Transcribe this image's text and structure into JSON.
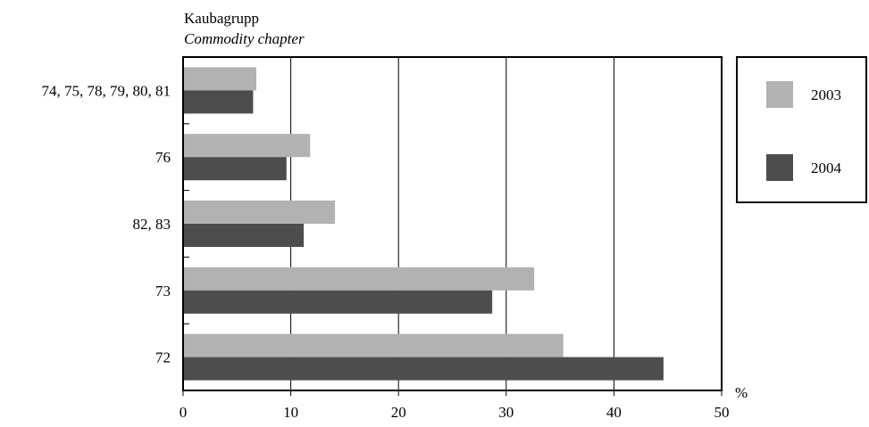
{
  "chart_data": {
    "type": "bar",
    "orientation": "horizontal",
    "ylabel": "Kaubagrupp",
    "ylabel_sub": "Commodity chapter",
    "xlabel": "%",
    "xlim": [
      0,
      50
    ],
    "xticks": [
      "0",
      "10",
      "20",
      "30",
      "40",
      "50"
    ],
    "categories": [
      "74, 75, 78, 79, 80, 81",
      "76",
      "82, 83",
      "73",
      "72"
    ],
    "series": [
      {
        "name": "2003",
        "color": "#b2b2b2",
        "values": [
          6.8,
          11.8,
          14.1,
          32.6,
          35.3
        ]
      },
      {
        "name": "2004",
        "color": "#4d4d4d",
        "values": [
          6.5,
          9.6,
          11.2,
          28.7,
          44.6
        ]
      }
    ],
    "grid": "vertical",
    "legend_position": "right"
  }
}
